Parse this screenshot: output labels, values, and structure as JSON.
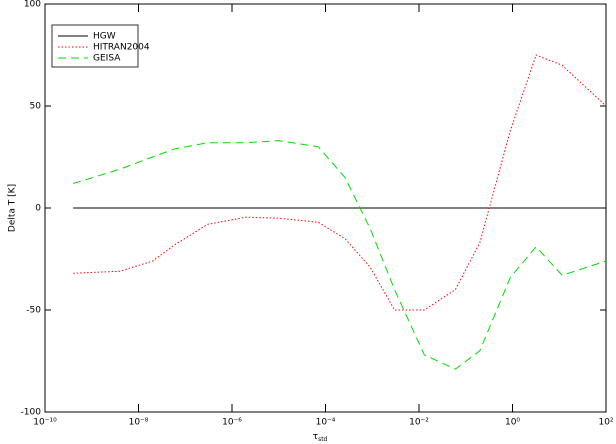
{
  "chart_data": {
    "type": "line",
    "y_label": "Delta T [K]",
    "x_label": "τ",
    "x_label_sub": "std",
    "x_log": true,
    "grid": false,
    "legend": "upper left",
    "x": [
      4e-10,
      4e-09,
      2e-08,
      6e-08,
      3e-07,
      2e-06,
      1e-05,
      7e-05,
      0.00026,
      0.0009,
      0.003,
      0.013,
      0.06,
      0.2,
      0.9,
      3.2,
      11.5,
      100
    ],
    "series": [
      {
        "name": "HGW",
        "color": "#000000",
        "dash": "solid",
        "values": [
          0,
          0,
          0,
          0,
          0,
          0,
          0,
          0,
          0,
          0,
          0,
          0,
          0,
          0,
          0,
          0,
          0,
          0
        ]
      },
      {
        "name": "HITRAN2004",
        "color": "#ff0000",
        "dash": "dotted",
        "values": [
          -32,
          -31,
          -26,
          -18,
          -8,
          -4.5,
          -5,
          -7,
          -15,
          -29,
          -50,
          -50,
          -40,
          -17,
          38,
          75,
          70,
          50
        ]
      },
      {
        "name": "GEISA",
        "color": "#00dd00",
        "dash": "dashed",
        "values": [
          12,
          19,
          25,
          29,
          32,
          32,
          33,
          30,
          15,
          -10,
          -40,
          -72,
          -79,
          -70,
          -34,
          -19,
          -33,
          -26
        ]
      }
    ],
    "xlim": [
      1e-10,
      100
    ],
    "xticks": [
      {
        "value": 1e-10,
        "label": "10⁻¹⁰"
      },
      {
        "value": 1e-08,
        "label": "10⁻⁸"
      },
      {
        "value": 1e-06,
        "label": "10⁻⁶"
      },
      {
        "value": 0.0001,
        "label": "10⁻⁴"
      },
      {
        "value": 0.01,
        "label": "10⁻²"
      },
      {
        "value": 1,
        "label": "10⁰"
      },
      {
        "value": 100,
        "label": "10²"
      }
    ],
    "ylim": [
      -100,
      100
    ],
    "yticks": [
      -100,
      -50,
      0,
      50,
      100
    ]
  }
}
